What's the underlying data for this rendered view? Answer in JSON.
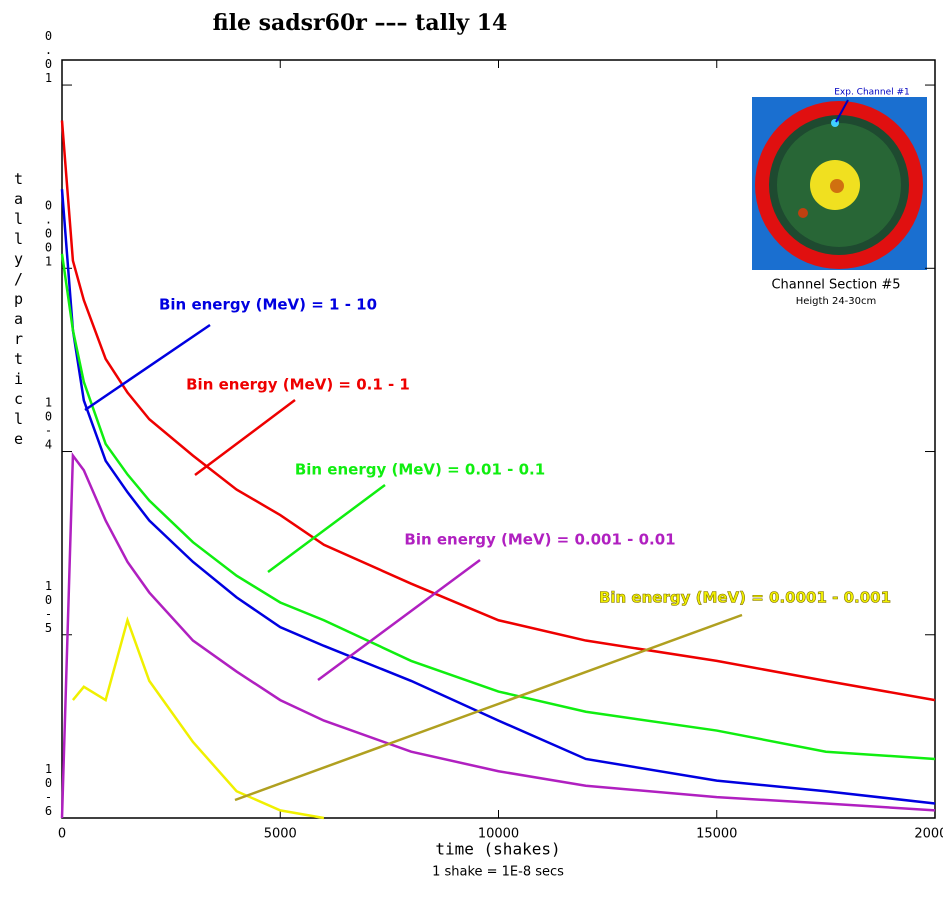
{
  "chart_data": {
    "type": "line",
    "title": "file sadsr60r ––– tally   14",
    "xlabel": "time (shakes)",
    "xnote": "1 shake = 1E-8 secs",
    "ylabel": "tally/particle",
    "log_y": true,
    "xlim": [
      0,
      20000
    ],
    "xticks": [
      0,
      5000,
      10000,
      15000,
      20000
    ],
    "ylim": [
      1e-06,
      0.0137
    ],
    "yticks": [
      {
        "value": 0.01,
        "label": "0.01"
      },
      {
        "value": 0.001,
        "label": "0.001"
      },
      {
        "value": 0.0001,
        "label": "10-4"
      },
      {
        "value": 1e-05,
        "label": "10-5"
      },
      {
        "value": 1e-06,
        "label": "10-6"
      }
    ],
    "x": [
      0,
      250,
      500,
      1000,
      1500,
      2000,
      3000,
      4000,
      5000,
      6000,
      8000,
      10000,
      12000,
      15000,
      17500,
      20000
    ],
    "series": [
      {
        "name": "Bin energy (MeV) = 1 - 10",
        "color": "#0000e0",
        "values": [
          0.0027,
          0.00046,
          0.00019,
          8.9e-05,
          6e-05,
          4.2e-05,
          2.5e-05,
          1.6e-05,
          1.1e-05,
          8.7e-06,
          5.6e-06,
          3.4e-06,
          2.1e-06,
          1.6e-06,
          1.4e-06,
          1.2e-06
        ]
      },
      {
        "name": "Bin energy (MeV) = 0.1 - 1",
        "color": "#ee0000",
        "values": [
          0.0064,
          0.0011,
          0.00067,
          0.00032,
          0.00021,
          0.00015,
          9.5e-05,
          6.2e-05,
          4.5e-05,
          3.1e-05,
          1.9e-05,
          1.2e-05,
          9.3e-06,
          7.2e-06,
          5.6e-06,
          4.4e-06
        ]
      },
      {
        "name": "Bin energy (MeV) = 0.01 - 0.1",
        "color": "#10ee10",
        "values": [
          0.0012,
          0.00046,
          0.00024,
          0.00011,
          7.5e-05,
          5.4e-05,
          3.2e-05,
          2.1e-05,
          1.5e-05,
          1.2e-05,
          7.2e-06,
          4.9e-06,
          3.8e-06,
          3e-06,
          2.3e-06,
          2.1e-06
        ]
      },
      {
        "name": "Bin energy (MeV) = 0.001 - 0.01",
        "color": "#b020c0",
        "values": [
          1e-06,
          9.5e-05,
          7.9e-05,
          4.2e-05,
          2.5e-05,
          1.7e-05,
          9.3e-06,
          6.3e-06,
          4.4e-06,
          3.4e-06,
          2.3e-06,
          1.8e-06,
          1.5e-06,
          1.3e-06,
          1.2e-06,
          1.1e-06
        ]
      },
      {
        "name": "Bin energy (MeV) = 0.0001 - 0.001",
        "color": "#f0f000",
        "values": [
          null,
          4.4e-06,
          5.2e-06,
          4.4e-06,
          1.2e-05,
          5.6e-06,
          2.6e-06,
          1.4e-06,
          1.1e-06,
          1e-06,
          null,
          null,
          null,
          null,
          null,
          null
        ]
      }
    ]
  },
  "inset": {
    "channel_label": "Exp. Channel #1",
    "caption": "Channel Section #5",
    "subcaption": "Heigth 24-30cm"
  }
}
